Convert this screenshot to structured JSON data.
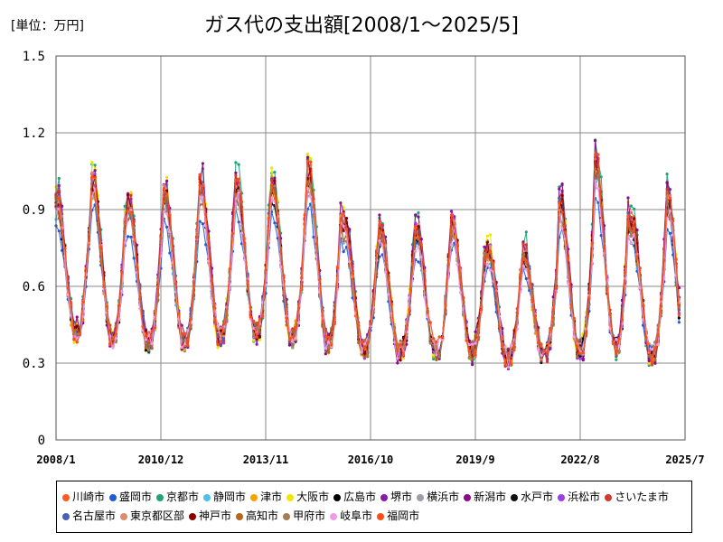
{
  "unit_label": "[単位：万円]",
  "chart_data": {
    "type": "line",
    "title": "ガス代の支出額[2008/1～2025/5]",
    "xlabel": "",
    "ylabel": "",
    "x_start": "2008-01",
    "x_end": "2025-07",
    "ylim": [
      0,
      1.5
    ],
    "y_ticks": [
      "0",
      "0.3",
      "0.6",
      "0.9",
      "1.2",
      "1.5"
    ],
    "x_ticks": [
      "2008/1",
      "2010/12",
      "2013/11",
      "2016/10",
      "2019/9",
      "2022/8",
      "2025/7"
    ],
    "grid": true,
    "legend_position": "bottom",
    "seasonal_profile": {
      "month": [
        1,
        2,
        3,
        4,
        5,
        6,
        7,
        8,
        9,
        10,
        11,
        12
      ],
      "relative_level": [
        0.98,
        0.97,
        0.85,
        0.7,
        0.55,
        0.42,
        0.33,
        0.32,
        0.34,
        0.43,
        0.58,
        0.8
      ]
    },
    "annual_winter_peak_approx": {
      "year": [
        2008,
        2009,
        2010,
        2011,
        2012,
        2013,
        2014,
        2015,
        2016,
        2017,
        2018,
        2019,
        2020,
        2021,
        2022,
        2023,
        2024,
        2025
      ],
      "peak": [
        0.95,
        1.02,
        0.93,
        0.97,
        1.0,
        1.0,
        1.0,
        1.05,
        0.85,
        0.82,
        0.82,
        0.85,
        0.75,
        0.74,
        0.93,
        1.08,
        0.85,
        0.95
      ]
    },
    "annual_summer_low_approx": {
      "year": [
        2008,
        2009,
        2010,
        2011,
        2012,
        2013,
        2014,
        2015,
        2016,
        2017,
        2018,
        2019,
        2020,
        2021,
        2022,
        2023,
        2024,
        2025
      ],
      "low": [
        0.42,
        0.4,
        0.38,
        0.38,
        0.4,
        0.42,
        0.4,
        0.38,
        0.35,
        0.35,
        0.35,
        0.35,
        0.32,
        0.33,
        0.35,
        0.36,
        0.33,
        0.3
      ]
    },
    "series": [
      {
        "name": "川崎市",
        "color": "#ff5a1f",
        "scale": 1.0,
        "jitter": 0.04,
        "seed": 1
      },
      {
        "name": "盛岡市",
        "color": "#1e5cd6",
        "scale": 0.8,
        "jitter": 0.03,
        "seed": 2
      },
      {
        "name": "京都市",
        "color": "#21a37a",
        "scale": 1.07,
        "jitter": 0.05,
        "seed": 3
      },
      {
        "name": "静岡市",
        "color": "#4fc0e8",
        "scale": 0.9,
        "jitter": 0.04,
        "seed": 4
      },
      {
        "name": "津市",
        "color": "#f5a300",
        "scale": 0.95,
        "jitter": 0.05,
        "seed": 5
      },
      {
        "name": "大阪市",
        "color": "#f2e600",
        "scale": 1.03,
        "jitter": 0.05,
        "seed": 6
      },
      {
        "name": "広島市",
        "color": "#000000",
        "scale": 0.95,
        "jitter": 0.03,
        "seed": 7
      },
      {
        "name": "堺市",
        "color": "#8b1aa8",
        "scale": 1.02,
        "jitter": 0.05,
        "seed": 8
      },
      {
        "name": "横浜市",
        "color": "#9aa0a6",
        "scale": 0.97,
        "jitter": 0.04,
        "seed": 9
      },
      {
        "name": "新潟市",
        "color": "#8a0a8a",
        "scale": 1.05,
        "jitter": 0.06,
        "seed": 10
      },
      {
        "name": "水戸市",
        "color": "#111111",
        "scale": 0.93,
        "jitter": 0.04,
        "seed": 11
      },
      {
        "name": "浜松市",
        "color": "#9b3fe6",
        "scale": 0.98,
        "jitter": 0.04,
        "seed": 12
      },
      {
        "name": "さいたま市",
        "color": "#d23a2e",
        "scale": 1.0,
        "jitter": 0.04,
        "seed": 13
      },
      {
        "name": "名古屋市",
        "color": "#4a5fb5",
        "scale": 0.96,
        "jitter": 0.04,
        "seed": 14
      },
      {
        "name": "東京都区部",
        "color": "#e08a6e",
        "scale": 0.98,
        "jitter": 0.04,
        "seed": 15
      },
      {
        "name": "神戸市",
        "color": "#8b0000",
        "scale": 0.99,
        "jitter": 0.04,
        "seed": 16
      },
      {
        "name": "高知市",
        "color": "#b5651d",
        "scale": 0.92,
        "jitter": 0.04,
        "seed": 17
      },
      {
        "name": "甲府市",
        "color": "#a67c52",
        "scale": 0.94,
        "jitter": 0.04,
        "seed": 18
      },
      {
        "name": "岐阜市",
        "color": "#f09be8",
        "scale": 0.9,
        "jitter": 0.04,
        "seed": 19
      },
      {
        "name": "福岡市",
        "color": "#ff4d17",
        "scale": 1.01,
        "jitter": 0.04,
        "seed": 20
      }
    ]
  }
}
